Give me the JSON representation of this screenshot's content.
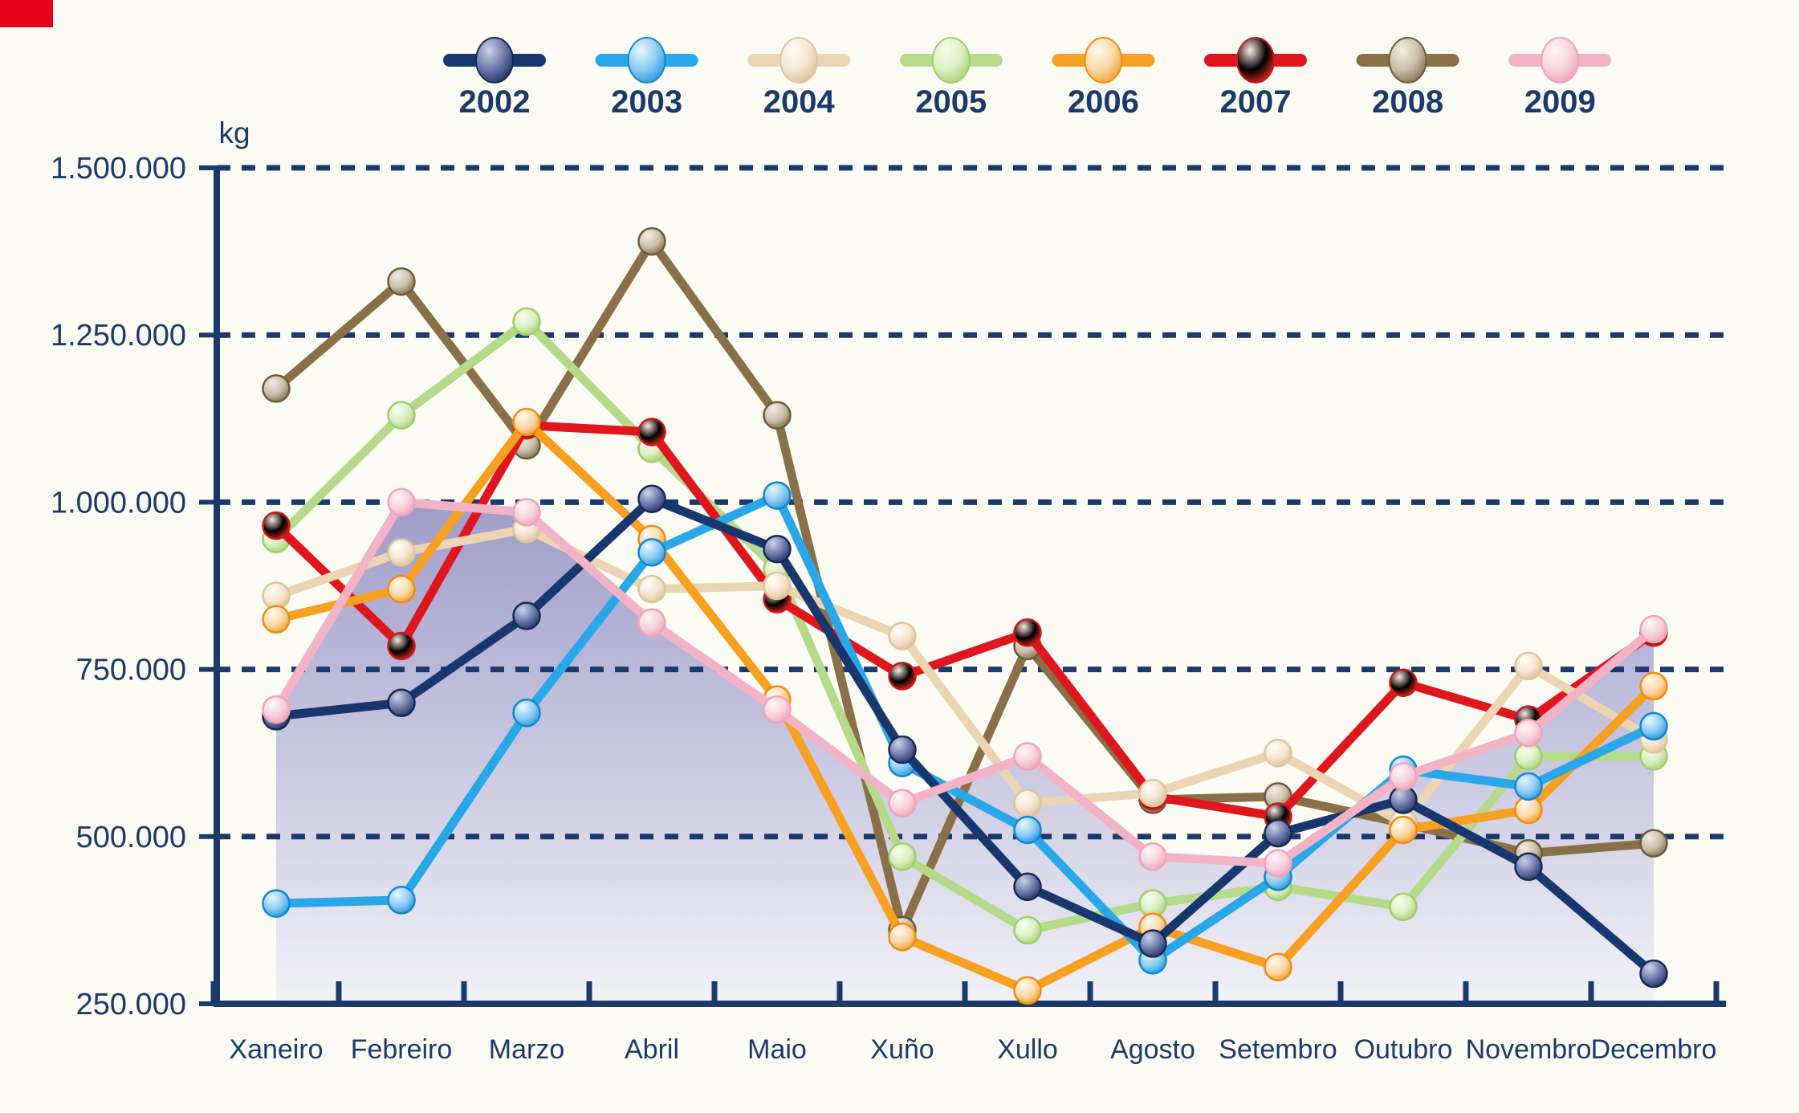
{
  "page": {
    "background": "#fcfcf5",
    "text_color": "#1b3a6b",
    "grid_color": "#1b3a6b",
    "axis_color": "#1b3a6b",
    "artifact_color": "#e50019"
  },
  "chart_data": {
    "type": "line",
    "title": "",
    "unit_label": "kg",
    "xlabel": "",
    "ylabel": "kg",
    "ylim": [
      250000,
      1500000
    ],
    "grid": "horizontal dashed, at 500k-1500k steps of 250k",
    "legend_position": "top",
    "categories": [
      "Xaneiro",
      "Febreiro",
      "Marzo",
      "Abril",
      "Maio",
      "Xuño",
      "Xullo",
      "Agosto",
      "Setembro",
      "Outubro",
      "Novembro",
      "Decembro"
    ],
    "y_ticks": [
      {
        "value": 250000,
        "label": "250.000"
      },
      {
        "value": 500000,
        "label": "500.000"
      },
      {
        "value": 750000,
        "label": "750.000"
      },
      {
        "value": 1000000,
        "label": "1.000.000"
      },
      {
        "value": 1250000,
        "label": "1.250.000"
      },
      {
        "value": 1500000,
        "label": "1.500.000"
      }
    ],
    "series": [
      {
        "name": "2002",
        "color": "#17376e",
        "marker": {
          "inner": "#cdd3e9",
          "mid": "#6a77a9",
          "edge": "#1d2f5f",
          "outline": "#142a52"
        },
        "values": [
          680000,
          700000,
          830000,
          1005000,
          930000,
          630000,
          425000,
          340000,
          505000,
          555000,
          455000,
          295000
        ]
      },
      {
        "name": "2003",
        "color": "#2aa7e8",
        "marker": {
          "inner": "#eaf7ff",
          "mid": "#8ccbf2",
          "edge": "#2196dd",
          "outline": "#1287cd"
        },
        "values": [
          400000,
          405000,
          685000,
          925000,
          1010000,
          610000,
          510000,
          315000,
          440000,
          600000,
          575000,
          665000
        ]
      },
      {
        "name": "2004",
        "color": "#ecd5b3",
        "marker": {
          "inner": "#fffdf8",
          "mid": "#f4e6d0",
          "edge": "#dcbd92",
          "outline": "#e0c59e"
        },
        "values": [
          860000,
          925000,
          960000,
          870000,
          875000,
          800000,
          550000,
          565000,
          625000,
          520000,
          755000,
          645000
        ]
      },
      {
        "name": "2005",
        "color": "#b5da8a",
        "marker": {
          "inner": "#f7fcf0",
          "mid": "#dcefc1",
          "edge": "#a6d073",
          "outline": "#9fce6c"
        },
        "values": [
          945000,
          1130000,
          1270000,
          1080000,
          900000,
          470000,
          360000,
          400000,
          425000,
          395000,
          620000,
          620000
        ]
      },
      {
        "name": "2006",
        "color": "#f7a022",
        "marker": {
          "inner": "#fff7ec",
          "mid": "#fbd9a8",
          "edge": "#f09b28",
          "outline": "#ef8d12"
        },
        "values": [
          825000,
          870000,
          1120000,
          945000,
          705000,
          350000,
          270000,
          365000,
          305000,
          510000,
          540000,
          725000
        ]
      },
      {
        "name": "2007",
        "color": "#e0161f",
        "marker": {
          "inner": "#ffe9e3",
          "mid": "#f9a violet",
          "edge": "#e02a1f",
          "outline": "#d21717"
        },
        "values": [
          965000,
          785000,
          1115000,
          1105000,
          855000,
          740000,
          805000,
          560000,
          530000,
          730000,
          675000,
          805000
        ]
      },
      {
        "name": "2008",
        "color": "#8a7049",
        "marker": {
          "inner": "#f3ede3",
          "mid": "#cbbfa9",
          "edge": "#7e6a49",
          "outline": "#6d5a3a"
        },
        "values": [
          1170000,
          1330000,
          1085000,
          1390000,
          1130000,
          360000,
          785000,
          555000,
          560000,
          520000,
          475000,
          490000
        ]
      },
      {
        "name": "2009",
        "color": "#f3b3c7",
        "marker": {
          "inner": "#fef5f7",
          "mid": "#f8d3de",
          "edge": "#ee9fb6",
          "outline": "#f0a4bb"
        },
        "area_fill": true,
        "fill_top": "#9895c5",
        "fill_bottom": "#f1f1f8",
        "values": [
          690000,
          1000000,
          985000,
          820000,
          690000,
          550000,
          620000,
          470000,
          460000,
          590000,
          655000,
          810000
        ]
      }
    ]
  }
}
